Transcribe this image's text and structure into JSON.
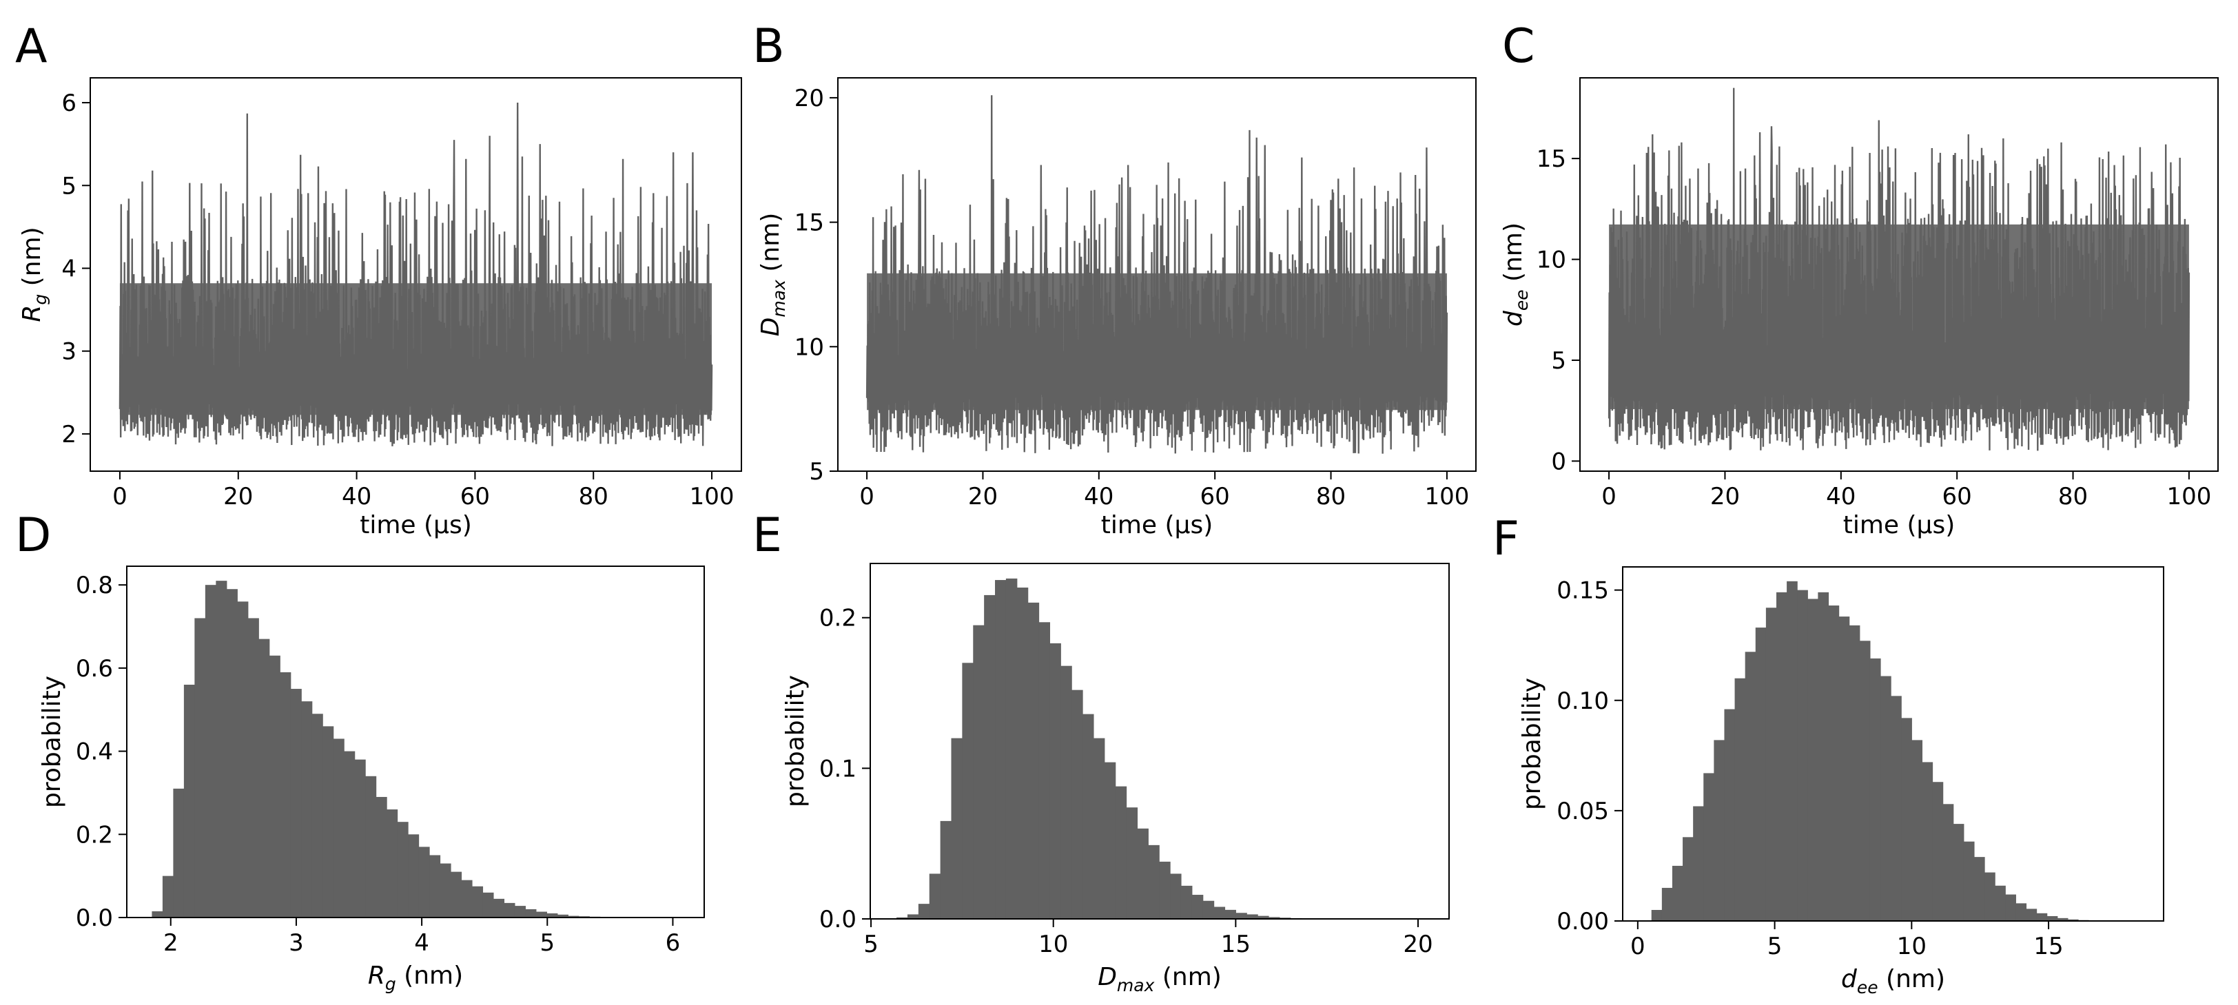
{
  "figure": {
    "accent_color": "#616161",
    "background_color": "#ffffff"
  },
  "chart_data": [
    {
      "id": "A",
      "letter": "A",
      "type": "line",
      "description_series": "Rg time trace",
      "xlabel": "time (µs)",
      "ylabel_main": "R",
      "ylabel_sub": "g",
      "ylabel_unit": " (nm)",
      "xlim": [
        -5,
        105
      ],
      "ylim": [
        1.55,
        6.3
      ],
      "xticks": [
        0,
        20,
        40,
        60,
        80,
        100
      ],
      "yticks": [
        2,
        3,
        4,
        5,
        6
      ],
      "trace": {
        "x_range": [
          0,
          100
        ],
        "baseline_low": 1.95,
        "upper_envelope": 3.9,
        "mean": 2.75,
        "min": 1.85,
        "max": 6.0,
        "spikes": [
          [
            21.5,
            5.87
          ],
          [
            30.5,
            5.37
          ],
          [
            56.5,
            5.55
          ],
          [
            62.5,
            5.6
          ],
          [
            67.2,
            6.0
          ],
          [
            68.0,
            5.35
          ],
          [
            71.0,
            5.5
          ],
          [
            93.5,
            5.4
          ],
          [
            96.8,
            5.4
          ],
          [
            5.5,
            5.18
          ],
          [
            11.8,
            5.03
          ],
          [
            33.5,
            5.23
          ],
          [
            58.5,
            5.32
          ],
          [
            85.0,
            5.32
          ]
        ]
      }
    },
    {
      "id": "B",
      "letter": "B",
      "type": "line",
      "description_series": "Dmax time trace",
      "xlabel": "time (µs)",
      "ylabel_main": "D",
      "ylabel_sub": "max",
      "ylabel_unit": " (nm)",
      "xlim": [
        -5,
        105
      ],
      "ylim": [
        5.0,
        20.8
      ],
      "xticks": [
        0,
        20,
        40,
        60,
        80,
        100
      ],
      "yticks": [
        5,
        10,
        15,
        20
      ],
      "trace": {
        "x_range": [
          0,
          100
        ],
        "baseline_low": 6.3,
        "upper_envelope": 13.2,
        "mean": 9.6,
        "min": 5.7,
        "max": 20.1,
        "spikes": [
          [
            21.5,
            20.1
          ],
          [
            66.0,
            18.7
          ],
          [
            67.2,
            18.4
          ],
          [
            68.6,
            18.1
          ],
          [
            75.0,
            17.6
          ],
          [
            96.5,
            18.0
          ],
          [
            9.0,
            17.1
          ],
          [
            30.0,
            17.3
          ],
          [
            45.0,
            17.3
          ],
          [
            52.0,
            17.4
          ],
          [
            84.0,
            17.2
          ],
          [
            92.0,
            17.0
          ]
        ]
      }
    },
    {
      "id": "C",
      "letter": "C",
      "type": "line",
      "description_series": "dee time trace",
      "xlabel": "time (µs)",
      "ylabel_main": "d",
      "ylabel_sub": "ee",
      "ylabel_unit": " (nm)",
      "xlim": [
        -5,
        105
      ],
      "ylim": [
        -0.5,
        19.0
      ],
      "xticks": [
        0,
        20,
        40,
        60,
        80,
        100
      ],
      "yticks": [
        0,
        5,
        10,
        15
      ],
      "trace": {
        "x_range": [
          0,
          100
        ],
        "baseline_low": 1.0,
        "upper_envelope": 12.2,
        "mean": 5.5,
        "min": 0.5,
        "max": 18.5,
        "spikes": [
          [
            21.5,
            18.5
          ],
          [
            7.5,
            16.2
          ],
          [
            12.5,
            15.8
          ],
          [
            26.0,
            16.3
          ],
          [
            28.0,
            16.6
          ],
          [
            46.5,
            16.9
          ],
          [
            62.0,
            16.2
          ],
          [
            68.0,
            16.0
          ],
          [
            78.0,
            15.8
          ],
          [
            96.0,
            15.7
          ]
        ]
      }
    },
    {
      "id": "D",
      "letter": "D",
      "type": "bar",
      "description_series": "Rg histogram",
      "xlabel_main": "R",
      "xlabel_sub": "g",
      "xlabel_unit": " (nm)",
      "ylabel": "probability",
      "xlim": [
        1.65,
        6.25
      ],
      "ylim": [
        0,
        0.845
      ],
      "xticks": [
        2,
        3,
        4,
        5,
        6
      ],
      "yticks": [
        0.0,
        0.2,
        0.4,
        0.6,
        0.8
      ],
      "ytick_labels": [
        "0.0",
        "0.2",
        "0.4",
        "0.6",
        "0.8"
      ],
      "bin_start": 1.85,
      "bin_width": 0.085,
      "values": [
        0.015,
        0.1,
        0.31,
        0.56,
        0.72,
        0.8,
        0.81,
        0.79,
        0.76,
        0.72,
        0.67,
        0.63,
        0.59,
        0.55,
        0.52,
        0.49,
        0.46,
        0.43,
        0.4,
        0.38,
        0.34,
        0.29,
        0.26,
        0.23,
        0.2,
        0.17,
        0.15,
        0.13,
        0.11,
        0.09,
        0.075,
        0.06,
        0.045,
        0.035,
        0.028,
        0.02,
        0.014,
        0.01,
        0.007,
        0.004,
        0.003,
        0.002,
        0.001,
        0.001,
        0.001,
        0.0005
      ]
    },
    {
      "id": "E",
      "letter": "E",
      "type": "bar",
      "description_series": "Dmax histogram",
      "xlabel_main": "D",
      "xlabel_sub": "max",
      "xlabel_unit": " (nm)",
      "ylabel": "probability",
      "xlim": [
        4.98,
        20.85
      ],
      "ylim": [
        0,
        0.236
      ],
      "xticks": [
        5,
        10,
        15,
        20
      ],
      "yticks": [
        0.0,
        0.1,
        0.2
      ],
      "ytick_labels": [
        "0.0",
        "0.1",
        "0.2"
      ],
      "bin_start": 5.7,
      "bin_width": 0.3,
      "values": [
        0.001,
        0.003,
        0.01,
        0.03,
        0.065,
        0.12,
        0.17,
        0.195,
        0.215,
        0.225,
        0.226,
        0.22,
        0.21,
        0.197,
        0.183,
        0.168,
        0.152,
        0.136,
        0.12,
        0.104,
        0.088,
        0.074,
        0.06,
        0.049,
        0.038,
        0.03,
        0.022,
        0.016,
        0.012,
        0.008,
        0.006,
        0.004,
        0.003,
        0.002,
        0.0012,
        0.0008,
        0.0005,
        0.0003,
        0.0002
      ]
    },
    {
      "id": "F",
      "letter": "F",
      "type": "bar",
      "description_series": "dee histogram",
      "xlabel_main": "d",
      "xlabel_sub": "ee",
      "xlabel_unit": " (nm)",
      "ylabel": "probability",
      "xlim": [
        -0.55,
        19.2
      ],
      "ylim": [
        0,
        0.1605
      ],
      "xticks": [
        0,
        5,
        10,
        15
      ],
      "yticks": [
        0.0,
        0.05,
        0.1,
        0.15
      ],
      "ytick_labels": [
        "0.00",
        "0.05",
        "0.10",
        "0.15"
      ],
      "bin_start": 0.5,
      "bin_width": 0.38,
      "values": [
        0.005,
        0.015,
        0.025,
        0.038,
        0.052,
        0.067,
        0.082,
        0.096,
        0.11,
        0.122,
        0.133,
        0.142,
        0.149,
        0.154,
        0.15,
        0.146,
        0.149,
        0.143,
        0.138,
        0.134,
        0.127,
        0.119,
        0.111,
        0.102,
        0.092,
        0.082,
        0.072,
        0.063,
        0.053,
        0.044,
        0.036,
        0.029,
        0.022,
        0.016,
        0.012,
        0.008,
        0.0055,
        0.0035,
        0.0022,
        0.0013,
        0.0007,
        0.0004
      ]
    }
  ]
}
